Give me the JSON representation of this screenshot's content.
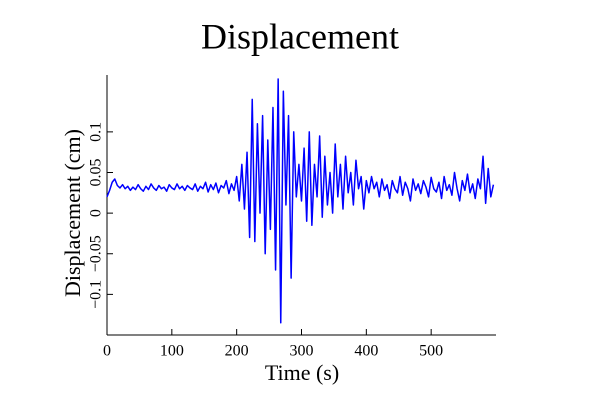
{
  "chart_data": {
    "type": "line",
    "title": "Displacement",
    "xlabel": "Time (s)",
    "ylabel": "Displacement (cm)",
    "xlim": [
      0,
      600
    ],
    "xticks": [
      0,
      100,
      200,
      300,
      400,
      500
    ],
    "ylim": [
      -0.15,
      0.17
    ],
    "yticks": [
      {
        "value": -0.1,
        "label": "−0.1"
      },
      {
        "value": -0.05,
        "label": "−0.05"
      },
      0,
      0.05,
      0.1
    ],
    "x": [
      0,
      4,
      8,
      12,
      16,
      20,
      24,
      28,
      32,
      36,
      40,
      44,
      48,
      52,
      56,
      60,
      64,
      68,
      72,
      76,
      80,
      84,
      88,
      92,
      96,
      100,
      104,
      108,
      112,
      116,
      120,
      124,
      128,
      132,
      136,
      140,
      144,
      148,
      152,
      156,
      160,
      164,
      168,
      172,
      176,
      180,
      184,
      188,
      192,
      196,
      200,
      204,
      208,
      212,
      216,
      220,
      224,
      228,
      232,
      236,
      240,
      244,
      248,
      252,
      256,
      260,
      264,
      268,
      272,
      276,
      280,
      284,
      288,
      292,
      296,
      300,
      304,
      308,
      312,
      316,
      320,
      324,
      328,
      332,
      336,
      340,
      344,
      348,
      352,
      356,
      360,
      364,
      368,
      372,
      376,
      380,
      384,
      388,
      392,
      396,
      400,
      404,
      408,
      412,
      416,
      420,
      424,
      428,
      432,
      436,
      440,
      444,
      448,
      452,
      456,
      460,
      464,
      468,
      472,
      476,
      480,
      484,
      488,
      492,
      496,
      500,
      504,
      508,
      512,
      516,
      520,
      524,
      528,
      532,
      536,
      540,
      544,
      548,
      552,
      556,
      560,
      564,
      568,
      572,
      576,
      580,
      584,
      588,
      592,
      596
    ],
    "series": [
      {
        "color": "#0000ff",
        "values": [
          0.02,
          0.028,
          0.038,
          0.042,
          0.034,
          0.031,
          0.035,
          0.03,
          0.033,
          0.028,
          0.032,
          0.029,
          0.035,
          0.03,
          0.027,
          0.033,
          0.029,
          0.036,
          0.031,
          0.028,
          0.034,
          0.03,
          0.032,
          0.027,
          0.035,
          0.031,
          0.029,
          0.036,
          0.03,
          0.033,
          0.028,
          0.034,
          0.031,
          0.029,
          0.036,
          0.027,
          0.033,
          0.03,
          0.038,
          0.026,
          0.035,
          0.029,
          0.037,
          0.025,
          0.034,
          0.031,
          0.04,
          0.024,
          0.036,
          0.028,
          0.045,
          0.015,
          0.06,
          0.005,
          0.075,
          -0.03,
          0.14,
          -0.035,
          0.11,
          0.0,
          0.12,
          -0.05,
          0.09,
          -0.02,
          0.13,
          -0.07,
          0.165,
          -0.135,
          0.15,
          0.01,
          0.12,
          -0.08,
          0.1,
          0.02,
          0.06,
          0.015,
          0.08,
          -0.01,
          0.1,
          -0.015,
          0.06,
          0.02,
          0.095,
          -0.005,
          0.07,
          0.01,
          0.05,
          0.0,
          0.085,
          0.02,
          0.06,
          0.005,
          0.07,
          0.025,
          0.05,
          0.01,
          0.065,
          0.03,
          0.045,
          0.005,
          0.04,
          0.025,
          0.045,
          0.03,
          0.038,
          0.02,
          0.042,
          0.028,
          0.035,
          0.018,
          0.04,
          0.03,
          0.025,
          0.045,
          0.022,
          0.038,
          0.03,
          0.015,
          0.042,
          0.028,
          0.036,
          0.024,
          0.04,
          0.032,
          0.02,
          0.044,
          0.03,
          0.026,
          0.038,
          0.018,
          0.045,
          0.028,
          0.035,
          0.022,
          0.05,
          0.03,
          0.015,
          0.04,
          0.028,
          0.048,
          0.025,
          0.036,
          0.018,
          0.042,
          0.03,
          0.07,
          0.012,
          0.055,
          0.02,
          0.035
        ]
      }
    ]
  }
}
